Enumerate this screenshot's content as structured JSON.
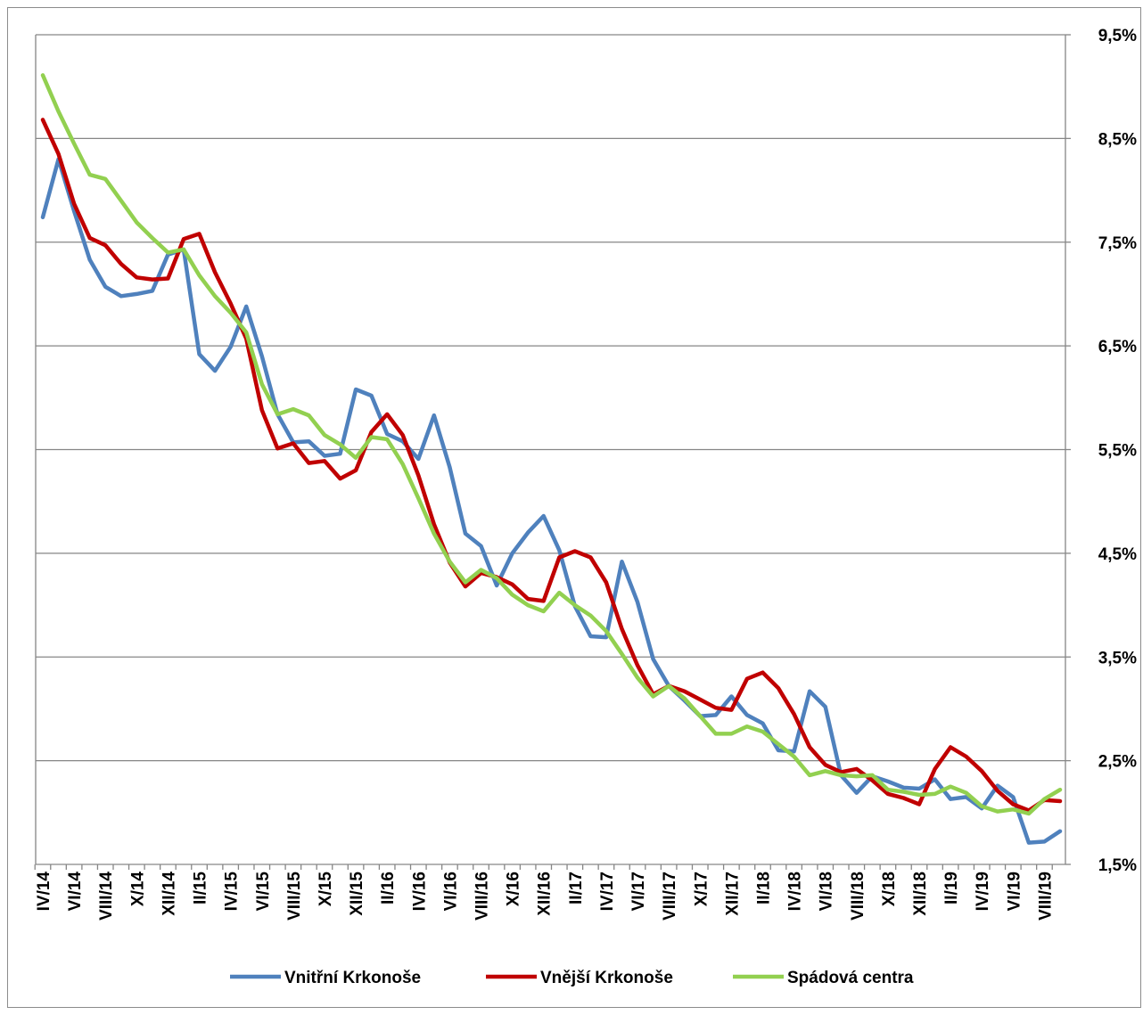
{
  "chart_data": {
    "type": "line",
    "title": "",
    "xlabel": "",
    "ylabel": "",
    "ylim": [
      1.5,
      9.5
    ],
    "y_ticks": [
      "1,5%",
      "2,5%",
      "3,5%",
      "4,5%",
      "5,5%",
      "6,5%",
      "7,5%",
      "8,5%",
      "9,5%"
    ],
    "y_tick_values": [
      1.5,
      2.5,
      3.5,
      4.5,
      5.5,
      6.5,
      7.5,
      8.5,
      9.5
    ],
    "y_axis_position": "right",
    "grid": true,
    "legend_position": "bottom",
    "x_labels": [
      "IV/14",
      "VI/14",
      "VIII/14",
      "X/14",
      "XII/14",
      "II/15",
      "IV/15",
      "VI/15",
      "VIII/15",
      "X/15",
      "XII/15",
      "II/16",
      "IV/16",
      "VI/16",
      "VIII/16",
      "X/16",
      "XII/16",
      "II/17",
      "IV/17",
      "VI/17",
      "VIII/17",
      "X/17",
      "XII/17",
      "II/18",
      "IV/18",
      "VI/18",
      "VIII/18",
      "X/18",
      "XII/18",
      "II/19",
      "IV/19",
      "VI/19",
      "VIII/19"
    ],
    "x_label_positions": [
      0,
      2,
      4,
      6,
      8,
      10,
      12,
      14,
      16,
      18,
      20,
      22,
      24,
      26,
      28,
      30,
      32,
      34,
      36,
      38,
      40,
      42,
      44,
      46,
      48,
      50,
      52,
      54,
      56,
      58,
      60,
      62,
      64
    ],
    "series": [
      {
        "name": "Vnitřní Krkonoše",
        "color": "#4f81bd",
        "values": [
          7.74,
          8.3,
          7.8,
          7.33,
          7.07,
          6.98,
          7.0,
          7.03,
          7.38,
          7.43,
          6.42,
          6.26,
          6.49,
          6.88,
          6.4,
          5.84,
          5.57,
          5.58,
          5.44,
          5.46,
          6.08,
          6.02,
          5.65,
          5.58,
          5.41,
          5.83,
          5.33,
          4.69,
          4.57,
          4.19,
          4.5,
          4.7,
          4.86,
          4.53,
          3.99,
          3.7,
          3.69,
          4.42,
          4.03,
          3.48,
          3.22,
          3.08,
          2.93,
          2.94,
          3.12,
          2.94,
          2.86,
          2.6,
          2.59,
          3.17,
          3.02,
          2.36,
          2.19,
          2.35,
          2.3,
          2.24,
          2.23,
          2.32,
          2.13,
          2.15,
          2.04,
          2.26,
          2.15,
          1.71,
          1.72,
          1.82
        ]
      },
      {
        "name": "Vnější Krkonoše",
        "color": "#c00000",
        "values": [
          8.68,
          8.35,
          7.87,
          7.54,
          7.47,
          7.29,
          7.16,
          7.14,
          7.15,
          7.53,
          7.58,
          7.21,
          6.91,
          6.57,
          5.88,
          5.51,
          5.56,
          5.37,
          5.39,
          5.22,
          5.3,
          5.67,
          5.84,
          5.64,
          5.25,
          4.78,
          4.41,
          4.18,
          4.31,
          4.27,
          4.2,
          4.06,
          4.04,
          4.46,
          4.52,
          4.46,
          4.22,
          3.77,
          3.42,
          3.14,
          3.22,
          3.17,
          3.09,
          3.01,
          2.99,
          3.29,
          3.35,
          3.2,
          2.95,
          2.63,
          2.46,
          2.39,
          2.42,
          2.31,
          2.18,
          2.14,
          2.08,
          2.42,
          2.63,
          2.54,
          2.4,
          2.21,
          2.08,
          2.02,
          2.12,
          2.11
        ]
      },
      {
        "name": "Spádová centra",
        "color": "#92d050",
        "values": [
          9.11,
          8.76,
          8.45,
          8.15,
          8.11,
          7.9,
          7.69,
          7.54,
          7.4,
          7.43,
          7.18,
          6.98,
          6.82,
          6.63,
          6.13,
          5.84,
          5.89,
          5.83,
          5.64,
          5.55,
          5.42,
          5.62,
          5.6,
          5.36,
          5.03,
          4.69,
          4.42,
          4.22,
          4.34,
          4.26,
          4.1,
          4.0,
          3.94,
          4.12,
          4.0,
          3.9,
          3.75,
          3.53,
          3.3,
          3.12,
          3.22,
          3.1,
          2.93,
          2.76,
          2.76,
          2.83,
          2.78,
          2.66,
          2.54,
          2.36,
          2.4,
          2.36,
          2.35,
          2.36,
          2.22,
          2.2,
          2.17,
          2.18,
          2.25,
          2.19,
          2.06,
          2.01,
          2.03,
          1.99,
          2.13,
          2.22
        ]
      }
    ]
  }
}
